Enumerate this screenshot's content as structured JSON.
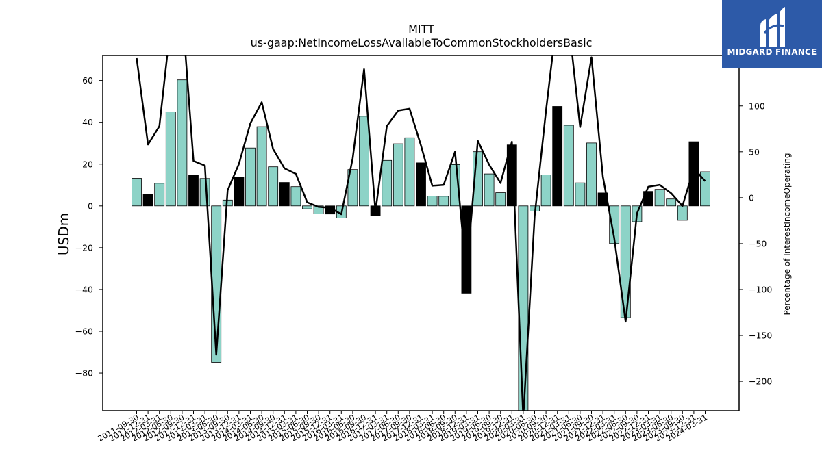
{
  "logo": {
    "text": "MIDGARD FINANCE",
    "icon": "midgard-finance-logo-mark"
  },
  "chart_data": {
    "type": "bar",
    "title": "MITT",
    "subtitle": "us-gaap:NetIncomeLossAvailableToCommonStockholdersBasic",
    "ylabel": "USDm",
    "y2label": "Percentage of InterestIncomeOperating",
    "ylim": [
      -98,
      72
    ],
    "y2lim": [
      -232,
      155
    ],
    "yticks": [
      -80,
      -60,
      -40,
      -20,
      0,
      20,
      40,
      60
    ],
    "y2ticks": [
      -200,
      -150,
      -100,
      -50,
      0,
      50,
      100
    ],
    "grid": false,
    "legend": "none",
    "colors": {
      "bar": "#8dd3c7",
      "bar_highlight": "#000000",
      "line": "#000000"
    },
    "categories": [
      "2011-09-30",
      "2011-12-31",
      "2012-03-31",
      "2012-06-30",
      "2012-09-30",
      "2012-12-31",
      "2013-03-31",
      "2013-06-30",
      "2013-09-30",
      "2013-12-31",
      "2014-03-31",
      "2014-06-30",
      "2014-09-30",
      "2014-12-31",
      "2015-03-31",
      "2015-06-30",
      "2015-09-30",
      "2015-12-31",
      "2016-03-31",
      "2016-06-30",
      "2016-09-30",
      "2016-12-31",
      "2017-03-31",
      "2017-06-30",
      "2017-09-30",
      "2017-12-31",
      "2018-03-31",
      "2018-06-30",
      "2018-09-30",
      "2018-12-31",
      "2019-03-31",
      "2019-06-30",
      "2019-09-30",
      "2019-12-31",
      "2020-03-31",
      "2020-06-30",
      "2020-09-30",
      "2020-12-31",
      "2021-03-31",
      "2021-06-30",
      "2021-09-30",
      "2021-12-31",
      "2022-03-31",
      "2022-06-30",
      "2022-09-30",
      "2022-12-31",
      "2023-03-31",
      "2023-06-30",
      "2023-09-30",
      "2023-12-31",
      "2024-03-31"
    ],
    "series": [
      {
        "type": "bar",
        "values": [
          13.2,
          5.6,
          10.8,
          45.0,
          60.3,
          14.6,
          13.1,
          -74.9,
          2.8,
          13.6,
          27.7,
          37.9,
          18.7,
          11.2,
          9.2,
          -1.4,
          -3.8,
          -3.9,
          -5.8,
          17.4,
          42.9,
          -4.7,
          21.8,
          29.7,
          32.6,
          20.6,
          4.7,
          4.6,
          19.8,
          -41.8,
          25.9,
          15.3,
          6.3,
          29.2,
          -98.0,
          -2.5,
          14.8,
          47.6,
          38.6,
          11.0,
          30.1,
          6.2,
          -18.0,
          -53.5,
          -7.6,
          6.9,
          7.9,
          3.3,
          -6.9,
          30.7,
          16.3
        ],
        "highlight": [
          false,
          true,
          false,
          false,
          false,
          true,
          false,
          false,
          false,
          true,
          false,
          false,
          false,
          true,
          false,
          false,
          false,
          true,
          false,
          false,
          false,
          true,
          false,
          false,
          false,
          true,
          false,
          false,
          false,
          true,
          false,
          false,
          false,
          true,
          false,
          false,
          false,
          true,
          false,
          false,
          false,
          true,
          false,
          false,
          false,
          true,
          false,
          false,
          false,
          true,
          false
        ]
      },
      {
        "type": "line",
        "axis": "y2",
        "values": [
          152,
          58,
          78,
          190,
          205,
          40,
          35,
          -171,
          8,
          37,
          81,
          104,
          53,
          32,
          26,
          -5,
          -10,
          -11,
          -18,
          43,
          140,
          -15,
          78,
          95,
          97,
          57,
          13,
          14,
          50,
          -84,
          62,
          36,
          16,
          61,
          -240,
          -20,
          95,
          200,
          190,
          77,
          153,
          23,
          -44,
          -135,
          -17,
          12,
          14,
          5,
          -9,
          32,
          18
        ]
      }
    ]
  }
}
